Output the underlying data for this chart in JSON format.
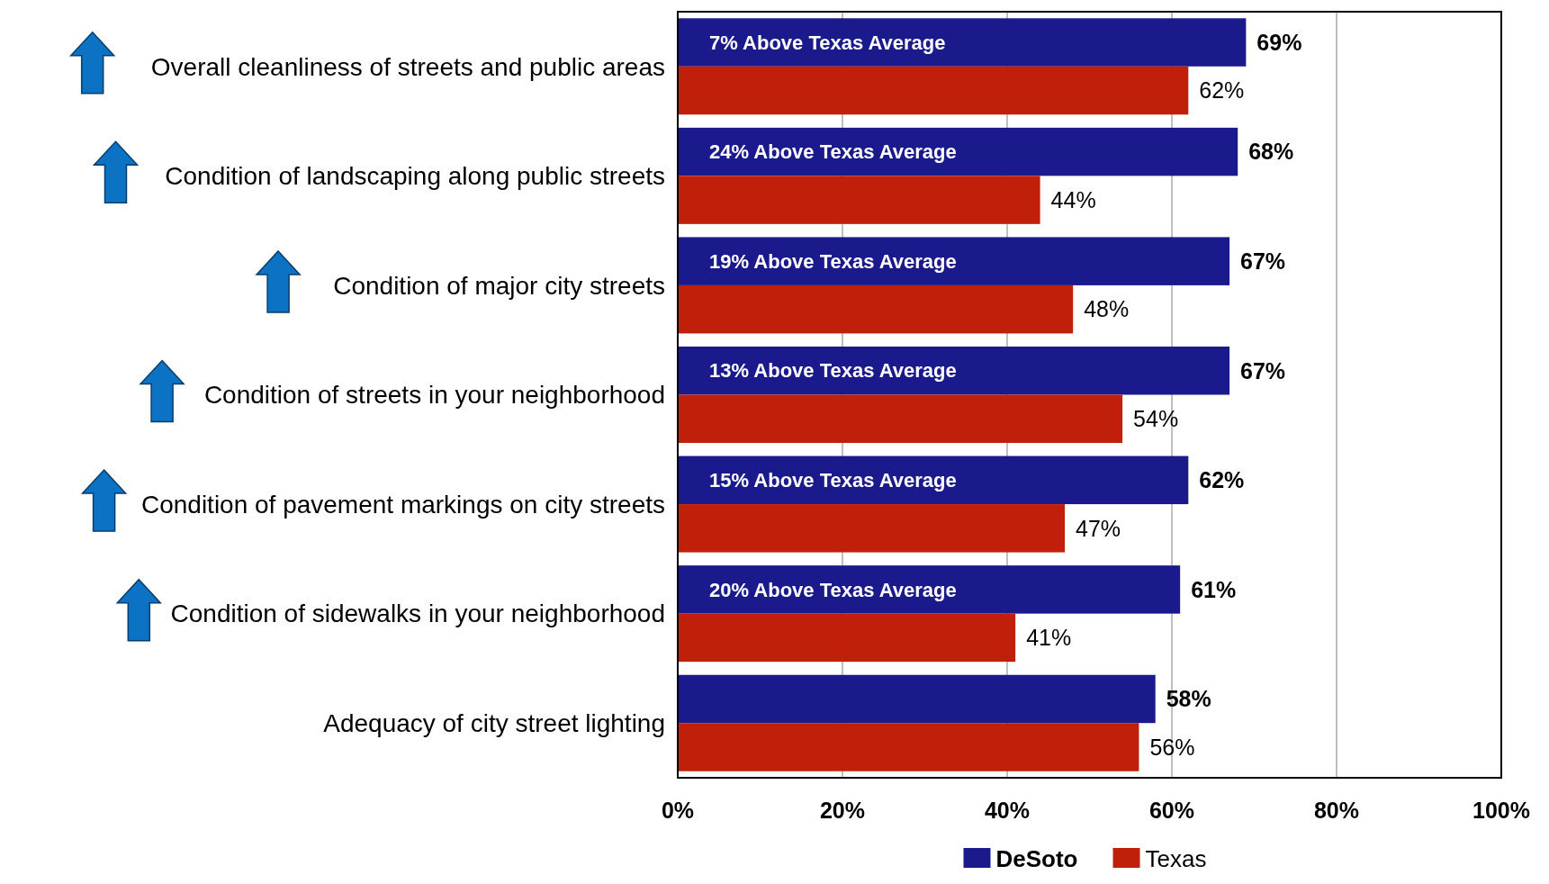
{
  "chart_data": {
    "type": "bar",
    "orientation": "horizontal",
    "categories": [
      "Overall cleanliness of streets and public areas",
      "Condition of landscaping along public streets",
      "Condition of major city streets",
      "Condition of streets in your neighborhood",
      "Condition of pavement markings on city streets",
      "Condition of sidewalks in your neighborhood",
      "Adequacy of city street lighting"
    ],
    "series": [
      {
        "name": "DeSoto",
        "color": "#1a1a8c",
        "values": [
          69,
          68,
          67,
          67,
          62,
          61,
          58
        ],
        "value_labels": [
          "69%",
          "68%",
          "67%",
          "67%",
          "62%",
          "61%",
          "58%"
        ]
      },
      {
        "name": "Texas",
        "color": "#c0200a",
        "values": [
          62,
          44,
          48,
          54,
          47,
          41,
          56
        ],
        "value_labels": [
          "62%",
          "44%",
          "48%",
          "54%",
          "47%",
          "41%",
          "56%"
        ]
      }
    ],
    "xlim": [
      0,
      100
    ],
    "xticks": [
      {
        "value": 0,
        "label": "0%"
      },
      {
        "value": 20,
        "label": "20%"
      },
      {
        "value": 40,
        "label": "40%"
      },
      {
        "value": 60,
        "label": "60%"
      },
      {
        "value": 80,
        "label": "80%"
      },
      {
        "value": 100,
        "label": "100%"
      }
    ],
    "grid": "x",
    "legend": "bottom",
    "annotations": [
      {
        "text": "7% Above Texas Average",
        "y": "Overall cleanliness of streets and public areas"
      },
      {
        "text": "24% Above Texas Average",
        "y": "Condition of landscaping along public streets"
      },
      {
        "text": "19% Above Texas Average",
        "y": "Condition of major city streets"
      },
      {
        "text": "13% Above Texas Average",
        "y": "Condition of streets in your neighborhood"
      },
      {
        "text": "15% Above Texas Average",
        "y": "Condition of pavement markings on city streets"
      },
      {
        "text": "20% Above Texas Average",
        "y": "Condition of sidewalks in your neighborhood"
      }
    ]
  }
}
